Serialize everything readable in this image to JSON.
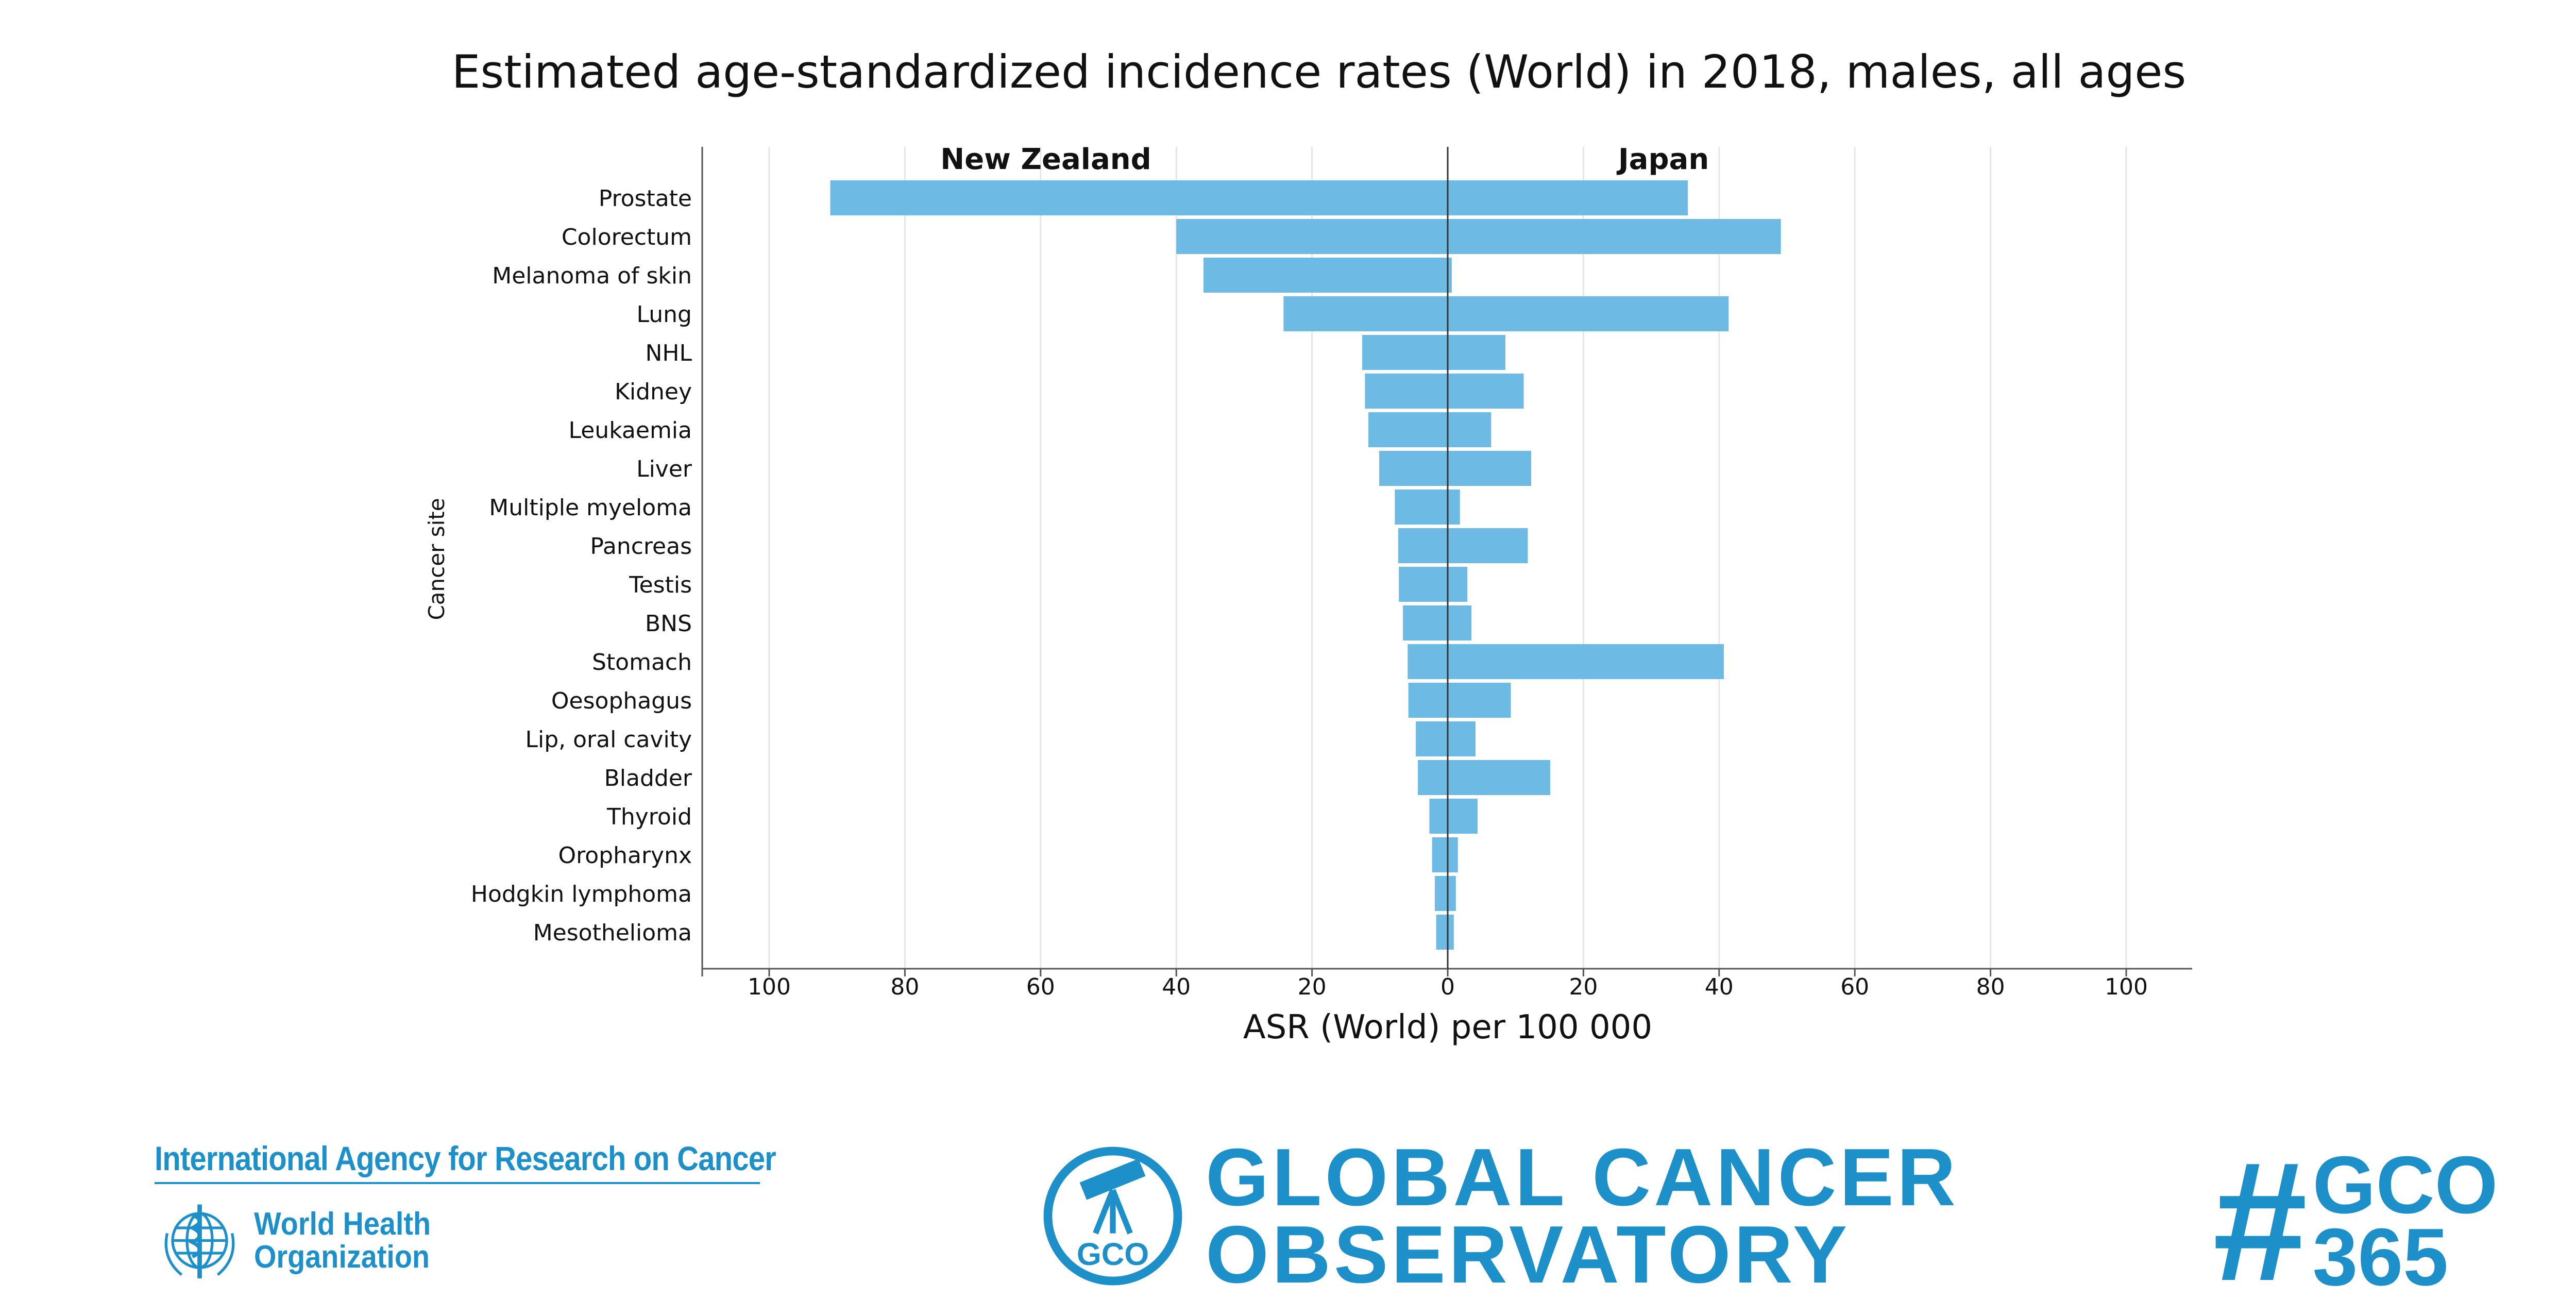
{
  "chart_data": {
    "type": "bar",
    "orientation": "horizontal-butterfly",
    "title": "Estimated age-standardized incidence rates (World) in 2018, males, all ages",
    "xlabel": "ASR (World) per 100 000",
    "ylabel": "Cancer site",
    "xlim": [
      -110,
      110
    ],
    "x_ticks": [
      -100,
      -80,
      -60,
      -40,
      -20,
      0,
      20,
      40,
      60,
      80,
      100
    ],
    "x_tick_labels": [
      "100",
      "80",
      "60",
      "40",
      "20",
      "0",
      "20",
      "40",
      "60",
      "80",
      "100"
    ],
    "grid": "vertical",
    "bar_color": "#6dbae5",
    "categories": [
      "Prostate",
      "Colorectum",
      "Melanoma of skin",
      "Lung",
      "NHL",
      "Kidney",
      "Leukaemia",
      "Liver",
      "Multiple myeloma",
      "Pancreas",
      "Testis",
      "BNS",
      "Stomach",
      "Oesophagus",
      "Lip, oral cavity",
      "Bladder",
      "Thyroid",
      "Oropharynx",
      "Hodgkin lymphoma",
      "Mesothelioma"
    ],
    "series": [
      {
        "name": "New Zealand",
        "side": "left",
        "values": [
          91.0,
          40.0,
          36.0,
          24.2,
          12.6,
          12.2,
          11.7,
          10.1,
          7.8,
          7.3,
          7.2,
          6.6,
          5.9,
          5.8,
          4.7,
          4.4,
          2.7,
          2.3,
          1.9,
          1.7
        ]
      },
      {
        "name": "Japan",
        "side": "right",
        "values": [
          35.4,
          49.1,
          0.6,
          41.4,
          8.5,
          11.2,
          6.4,
          12.3,
          1.8,
          11.8,
          2.9,
          3.5,
          40.7,
          9.3,
          4.1,
          15.1,
          4.4,
          1.5,
          1.2,
          0.9
        ]
      }
    ]
  },
  "footer": {
    "iarc": "International Agency for Research on Cancer",
    "who_line1": "World Health",
    "who_line2": "Organization",
    "gco_line1": "GLOBAL CANCER",
    "gco_line2": "OBSERVATORY",
    "gco_badge": "GCO",
    "hashtag_symbol": "#",
    "hashtag_line1": "GCO",
    "hashtag_line2": "365",
    "brand_color": "#1d90c9"
  }
}
